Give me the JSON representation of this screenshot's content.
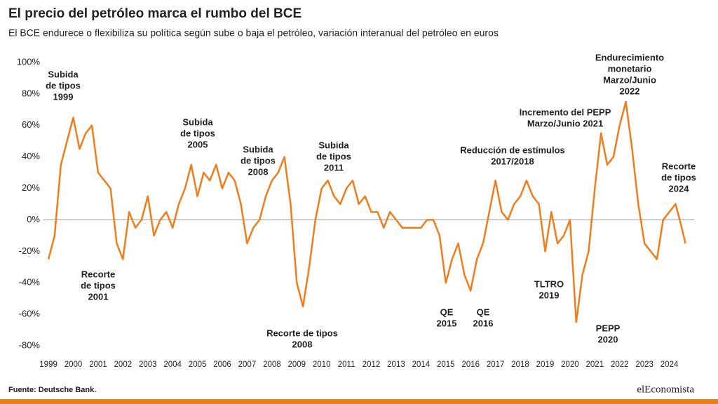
{
  "chart_data": {
    "type": "line",
    "title": "El precio del petróleo marca el rumbo del BCE",
    "subtitle": "El BCE endurece o flexibiliza su política según sube o baja el petróleo, variación interanual del petróleo en euros",
    "source": "Fuente: Deutsche Bank.",
    "logo": "elEconomista",
    "x": [
      1999.0,
      1999.25,
      1999.5,
      1999.75,
      2000.0,
      2000.25,
      2000.5,
      2000.75,
      2001.0,
      2001.25,
      2001.5,
      2001.75,
      2002.0,
      2002.25,
      2002.5,
      2002.75,
      2003.0,
      2003.25,
      2003.5,
      2003.75,
      2004.0,
      2004.25,
      2004.5,
      2004.75,
      2005.0,
      2005.25,
      2005.5,
      2005.75,
      2006.0,
      2006.25,
      2006.5,
      2006.75,
      2007.0,
      2007.25,
      2007.5,
      2007.75,
      2008.0,
      2008.25,
      2008.5,
      2008.75,
      2009.0,
      2009.25,
      2009.5,
      2009.75,
      2010.0,
      2010.25,
      2010.5,
      2010.75,
      2011.0,
      2011.25,
      2011.5,
      2011.75,
      2012.0,
      2012.25,
      2012.5,
      2012.75,
      2013.0,
      2013.25,
      2013.5,
      2013.75,
      2014.0,
      2014.25,
      2014.5,
      2014.75,
      2015.0,
      2015.25,
      2015.5,
      2015.75,
      2016.0,
      2016.25,
      2016.5,
      2016.75,
      2017.0,
      2017.25,
      2017.5,
      2017.75,
      2018.0,
      2018.25,
      2018.5,
      2018.75,
      2019.0,
      2019.25,
      2019.5,
      2019.75,
      2020.0,
      2020.25,
      2020.5,
      2020.75,
      2021.0,
      2021.25,
      2021.5,
      2021.75,
      2022.0,
      2022.25,
      2022.5,
      2022.75,
      2023.0,
      2023.25,
      2023.5,
      2023.75,
      2024.0,
      2024.25,
      2024.5,
      2024.65
    ],
    "series": [
      {
        "name": "Petróleo en euros",
        "color": "#f07d1a",
        "values": [
          -25,
          -10,
          35,
          50,
          65,
          45,
          55,
          60,
          30,
          25,
          20,
          -15,
          -25,
          5,
          -5,
          0,
          15,
          -10,
          0,
          5,
          -5,
          10,
          20,
          35,
          15,
          30,
          25,
          35,
          20,
          30,
          25,
          10,
          -15,
          -5,
          0,
          15,
          25,
          30,
          40,
          10,
          -40,
          -55,
          -30,
          0,
          20,
          25,
          15,
          10,
          20,
          25,
          10,
          15,
          5,
          5,
          -5,
          5,
          0,
          -5,
          -5,
          -5,
          -5,
          0,
          0,
          -10,
          -40,
          -25,
          -15,
          -35,
          -45,
          -25,
          -15,
          5,
          25,
          5,
          0,
          10,
          15,
          25,
          15,
          10,
          -20,
          5,
          -15,
          -10,
          0,
          -65,
          -35,
          -20,
          20,
          55,
          35,
          40,
          60,
          75,
          45,
          10,
          -15,
          -20,
          -25,
          0,
          5,
          10,
          -5,
          -15
        ]
      }
    ],
    "xlim": [
      1998.8,
      2025.0
    ],
    "xticks": [
      1999,
      2000,
      2001,
      2002,
      2003,
      2004,
      2005,
      2006,
      2007,
      2008,
      2009,
      2010,
      2011,
      2012,
      2013,
      2014,
      2015,
      2016,
      2017,
      2018,
      2019,
      2020,
      2021,
      2022,
      2023,
      2024
    ],
    "ylim": [
      -80,
      100
    ],
    "yticks": [
      {
        "value": 100,
        "label": "100%"
      },
      {
        "value": 80,
        "label": "80%"
      },
      {
        "value": 60,
        "label": "60%"
      },
      {
        "value": 40,
        "label": "40%"
      },
      {
        "value": 20,
        "label": "20%"
      },
      {
        "value": 0,
        "label": "0%"
      },
      {
        "value": -20,
        "label": "-20%"
      },
      {
        "value": -40,
        "label": "-40%"
      },
      {
        "value": -60,
        "label": "-60%"
      },
      {
        "value": -80,
        "label": "-80%"
      }
    ],
    "annotations": [
      [
        "Subida",
        "de tipos",
        "1999"
      ],
      [
        "Recorte",
        "de tipos",
        "2001"
      ],
      [
        "Subida",
        "de tipos",
        "2005"
      ],
      [
        "Subida",
        "de tipos",
        "2008"
      ],
      [
        "Subida",
        "de tipos",
        "2011"
      ],
      [
        "Recorte de tipos",
        "2008"
      ],
      [
        "QE",
        "2015"
      ],
      [
        "QE",
        "2016"
      ],
      [
        "Reducción de estímulos",
        "2017/2018"
      ],
      [
        "TLTRO",
        "2019"
      ],
      [
        "Incremento del PEPP",
        "Marzo/Junio 2021"
      ],
      [
        "Endurecimiento",
        "monetario",
        "Marzo/Junio",
        "2022"
      ],
      [
        "PEPP",
        "2020"
      ],
      [
        "Recorte",
        "de tipos",
        "2024"
      ]
    ]
  }
}
